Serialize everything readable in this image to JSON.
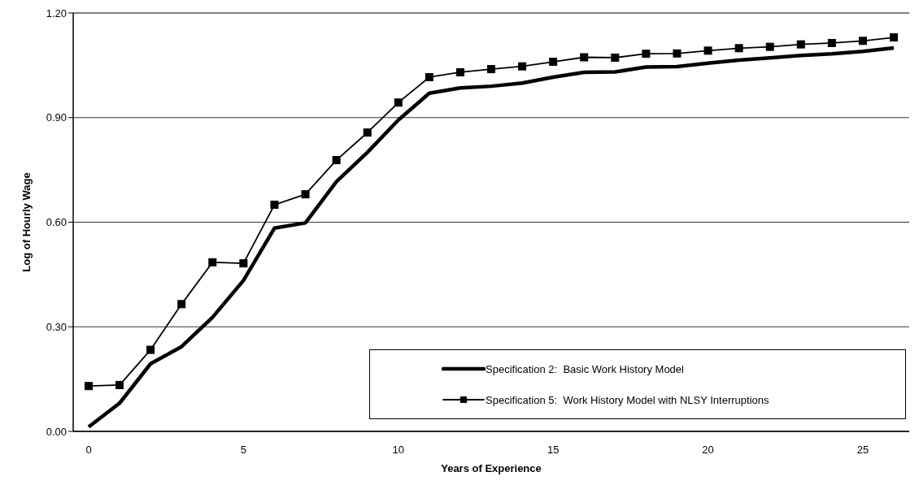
{
  "chart_data": {
    "type": "line",
    "xlabel": "Years of Experience",
    "ylabel": "Log of Hourly Wage",
    "categories": [
      "0",
      null,
      null,
      null,
      null,
      "5",
      null,
      null,
      null,
      null,
      "10",
      null,
      null,
      null,
      null,
      "15",
      null,
      null,
      null,
      null,
      "20",
      null,
      null,
      null,
      null,
      "25",
      null
    ],
    "ylim": [
      0,
      1.2
    ],
    "yticks": [
      {
        "value": 0,
        "label": "0.00"
      },
      {
        "value": 0.3,
        "label": "0.30"
      },
      {
        "value": 0.6,
        "label": "0.60"
      },
      {
        "value": 0.9,
        "label": "0.90"
      },
      {
        "value": 1.2,
        "label": "1.20"
      }
    ],
    "grid": "y",
    "legend": "bottom right",
    "series": [
      {
        "name": "Specification 2:  Basic Work History Model",
        "color": "#000000",
        "marker": "none",
        "values": [
          0.013,
          0.081,
          0.194,
          0.243,
          0.327,
          0.433,
          0.583,
          0.598,
          0.716,
          0.8,
          0.893,
          0.97,
          0.985,
          0.99,
          0.999,
          1.016,
          1.03,
          1.031,
          1.045,
          1.046,
          1.056,
          1.065,
          1.071,
          1.078,
          1.083,
          1.09,
          1.1
        ]
      },
      {
        "name": "Specification 5:  Work History Model with NLSY Interruptions",
        "color": "#000000",
        "marker": "square",
        "values": [
          0.13,
          0.133,
          0.234,
          0.365,
          0.485,
          0.482,
          0.65,
          0.68,
          0.778,
          0.857,
          0.943,
          1.016,
          1.03,
          1.039,
          1.047,
          1.06,
          1.073,
          1.072,
          1.083,
          1.084,
          1.092,
          1.099,
          1.103,
          1.11,
          1.114,
          1.12,
          1.13
        ]
      }
    ]
  }
}
